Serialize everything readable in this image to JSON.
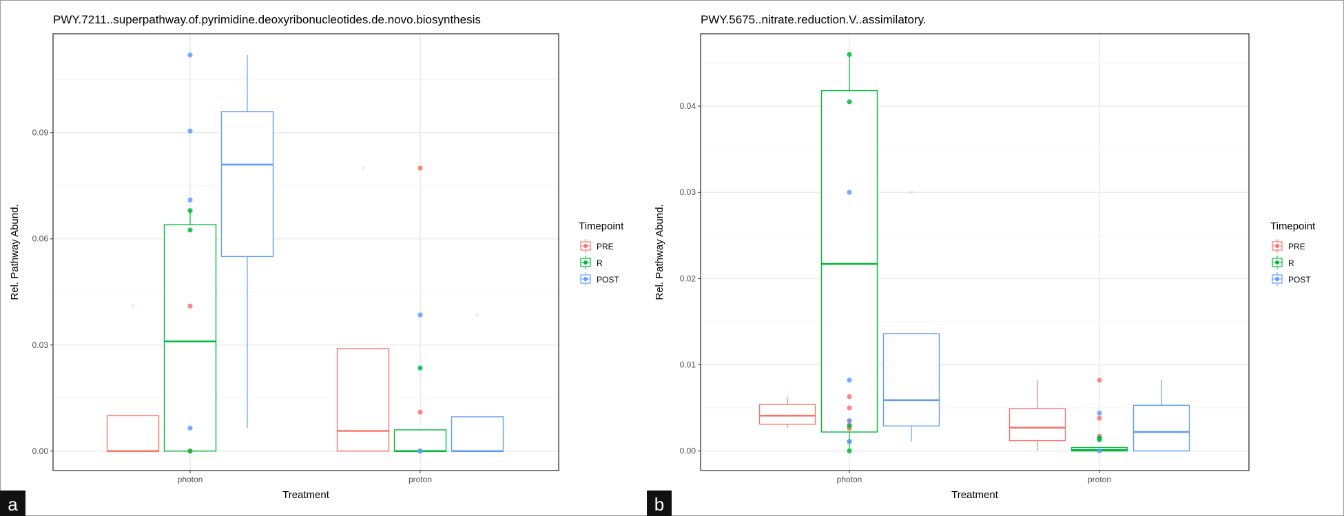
{
  "colors": {
    "PRE": "#F8766D",
    "R": "#00BA38",
    "POST": "#619CFF"
  },
  "chart_data": [
    {
      "panel_label": "a",
      "type": "boxplot",
      "title": "PWY.7211..superpathway.of.pyrimidine.deoxyribonucleotides.de.novo.biosynthesis",
      "xlabel": "Treatment",
      "ylabel": "Rel. Pathway Abund.",
      "categories": [
        "photon",
        "proton"
      ],
      "ylim": [
        -0.0055,
        0.118
      ],
      "yticks": [
        0,
        0.03,
        0.06,
        0.09
      ],
      "ytick_labels": [
        "0.00",
        "0.03",
        "0.06",
        "0.09"
      ],
      "grid": true,
      "legend": {
        "title": "Timepoint",
        "entries": [
          "PRE",
          "R",
          "POST"
        ],
        "placement": "right"
      },
      "series": [
        {
          "name": "PRE",
          "boxes": [
            {
              "category": "photon",
              "lower": 0,
              "q1": 0,
              "median": 0,
              "q3": 0.01,
              "upper": 0.01,
              "outliers": [
                0.041
              ],
              "points": [
                0.041,
                0.0
              ]
            },
            {
              "category": "proton",
              "lower": 0,
              "q1": 0,
              "median": 0.0057,
              "q3": 0.029,
              "upper": 0.029,
              "outliers": [
                0.08
              ],
              "points": [
                0.08,
                0.011
              ]
            }
          ]
        },
        {
          "name": "R",
          "boxes": [
            {
              "category": "photon",
              "lower": 0,
              "q1": 0,
              "median": 0.031,
              "q3": 0.064,
              "upper": 0.068,
              "outliers": [],
              "points": [
                0.068,
                0.0625,
                0.0
              ]
            },
            {
              "category": "proton",
              "lower": 0,
              "q1": 0,
              "median": 0,
              "q3": 0.006,
              "upper": 0.006,
              "outliers": [],
              "points": [
                0.0235,
                0.0
              ]
            }
          ]
        },
        {
          "name": "POST",
          "boxes": [
            {
              "category": "photon",
              "lower": 0.0065,
              "q1": 0.055,
              "median": 0.081,
              "q3": 0.096,
              "upper": 0.112,
              "outliers": [],
              "points": [
                0.112,
                0.0905,
                0.071,
                0.0065
              ]
            },
            {
              "category": "proton",
              "lower": 0,
              "q1": 0,
              "median": 0,
              "q3": 0.0097,
              "upper": 0.0097,
              "outliers": [
                0.0385
              ],
              "points": [
                0.0385,
                0.0
              ]
            }
          ]
        }
      ]
    },
    {
      "panel_label": "b",
      "type": "boxplot",
      "title": "PWY.5675..nitrate.reduction.V..assimilatory.",
      "xlabel": "Treatment",
      "ylabel": "Rel. Pathway Abund.",
      "categories": [
        "photon",
        "proton"
      ],
      "ylim": [
        -0.00227,
        0.0484
      ],
      "yticks": [
        0,
        0.01,
        0.02,
        0.03,
        0.04
      ],
      "ytick_labels": [
        "0.00",
        "0.01",
        "0.02",
        "0.03",
        "0.04"
      ],
      "grid": true,
      "legend": {
        "title": "Timepoint",
        "entries": [
          "PRE",
          "R",
          "POST"
        ],
        "placement": "right"
      },
      "series": [
        {
          "name": "PRE",
          "boxes": [
            {
              "category": "photon",
              "lower": 0.0027,
              "q1": 0.0031,
              "median": 0.0041,
              "q3": 0.0054,
              "upper": 0.0063,
              "outliers": [],
              "points": [
                0.0063,
                0.005,
                0.0035,
                0.003,
                0.0026
              ]
            },
            {
              "category": "proton",
              "lower": 0,
              "q1": 0.0012,
              "median": 0.0027,
              "q3": 0.0049,
              "upper": 0.0082,
              "outliers": [],
              "points": [
                0.0082,
                0.0038,
                0.0017
              ]
            }
          ]
        },
        {
          "name": "R",
          "boxes": [
            {
              "category": "photon",
              "lower": 0,
              "q1": 0.0022,
              "median": 0.0217,
              "q3": 0.0418,
              "upper": 0.046,
              "outliers": [],
              "points": [
                0.046,
                0.0405,
                0.0029,
                0.0011,
                0.0
              ]
            },
            {
              "category": "proton",
              "lower": 0,
              "q1": 0,
              "median": 0.0001,
              "q3": 0.0004,
              "upper": 0.0004,
              "outliers": [],
              "points": [
                0.0015,
                0.0013
              ]
            }
          ]
        },
        {
          "name": "POST",
          "boxes": [
            {
              "category": "photon",
              "lower": 0.0011,
              "q1": 0.0029,
              "median": 0.0059,
              "q3": 0.0136,
              "upper": 0.0136,
              "outliers": [
                0.03
              ],
              "points": [
                0.03,
                0.0082,
                0.0035,
                0.0011
              ]
            },
            {
              "category": "proton",
              "lower": 0,
              "q1": 0,
              "median": 0.0022,
              "q3": 0.0053,
              "upper": 0.0082,
              "outliers": [],
              "points": [
                0.0044,
                0.0
              ]
            }
          ]
        }
      ]
    }
  ]
}
